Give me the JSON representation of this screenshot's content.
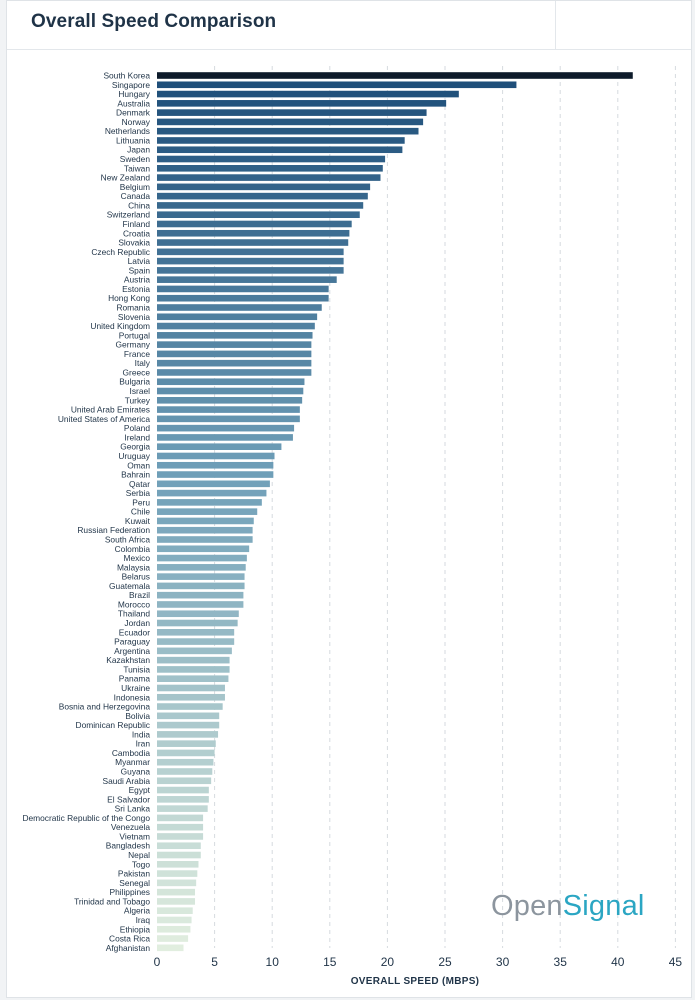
{
  "header": {
    "title": "Overall Speed Comparison"
  },
  "logo": {
    "part1": "Open",
    "part2": "Signal"
  },
  "chart_data": {
    "type": "bar",
    "orientation": "horizontal",
    "title": "Overall Speed Comparison",
    "xlabel": "OVERALL SPEED (MBPS)",
    "ylabel": "",
    "xlim": [
      0,
      45
    ],
    "xticks": [
      0,
      5,
      10,
      15,
      20,
      25,
      30,
      35,
      40,
      45
    ],
    "grid": "vertical dashed",
    "categories": [
      "South Korea",
      "Singapore",
      "Hungary",
      "Australia",
      "Denmark",
      "Norway",
      "Netherlands",
      "Lithuania",
      "Japan",
      "Sweden",
      "Taiwan",
      "New Zealand",
      "Belgium",
      "Canada",
      "China",
      "Switzerland",
      "Finland",
      "Croatia",
      "Slovakia",
      "Czech Republic",
      "Latvia",
      "Spain",
      "Austria",
      "Estonia",
      "Hong Kong",
      "Romania",
      "Slovenia",
      "United Kingdom",
      "Portugal",
      "Germany",
      "France",
      "Italy",
      "Greece",
      "Bulgaria",
      "Israel",
      "Turkey",
      "United Arab Emirates",
      "United States of America",
      "Poland",
      "Ireland",
      "Georgia",
      "Uruguay",
      "Oman",
      "Bahrain",
      "Qatar",
      "Serbia",
      "Peru",
      "Chile",
      "Kuwait",
      "Russian Federation",
      "South Africa",
      "Colombia",
      "Mexico",
      "Malaysia",
      "Belarus",
      "Guatemala",
      "Brazil",
      "Morocco",
      "Thailand",
      "Jordan",
      "Ecuador",
      "Paraguay",
      "Argentina",
      "Kazakhstan",
      "Tunisia",
      "Panama",
      "Ukraine",
      "Indonesia",
      "Bosnia and Herzegovina",
      "Bolivia",
      "Dominican Republic",
      "India",
      "Iran",
      "Cambodia",
      "Myanmar",
      "Guyana",
      "Saudi Arabia",
      "Egypt",
      "El Salvador",
      "Sri Lanka",
      "Democratic Republic of the Congo",
      "Venezuela",
      "Vietnam",
      "Bangladesh",
      "Nepal",
      "Togo",
      "Pakistan",
      "Senegal",
      "Philippines",
      "Trinidad and Tobago",
      "Algeria",
      "Iraq",
      "Ethiopia",
      "Costa Rica",
      "Afghanistan"
    ],
    "values": [
      41.3,
      31.2,
      26.2,
      25.1,
      23.4,
      23.1,
      22.7,
      21.5,
      21.3,
      19.8,
      19.6,
      19.4,
      18.5,
      18.3,
      17.9,
      17.6,
      16.9,
      16.7,
      16.6,
      16.2,
      16.2,
      16.2,
      15.6,
      14.9,
      14.9,
      14.3,
      13.9,
      13.7,
      13.5,
      13.4,
      13.4,
      13.4,
      13.4,
      12.8,
      12.7,
      12.6,
      12.4,
      12.4,
      11.9,
      11.8,
      10.8,
      10.2,
      10.1,
      10.1,
      9.8,
      9.5,
      9.1,
      8.7,
      8.4,
      8.3,
      8.3,
      8.0,
      7.8,
      7.7,
      7.6,
      7.6,
      7.5,
      7.5,
      7.1,
      7.0,
      6.7,
      6.7,
      6.5,
      6.3,
      6.3,
      6.2,
      5.9,
      5.9,
      5.7,
      5.4,
      5.4,
      5.3,
      5.1,
      5.0,
      4.9,
      4.8,
      4.7,
      4.5,
      4.5,
      4.4,
      4.0,
      4.0,
      4.0,
      3.8,
      3.8,
      3.6,
      3.5,
      3.4,
      3.3,
      3.3,
      3.1,
      3.0,
      2.9,
      2.7,
      2.3
    ],
    "colors": {
      "top": "#0d1b2a",
      "start": "#1f4f7a",
      "mid": "#6f9fb8",
      "end": "#e1eedf"
    }
  }
}
